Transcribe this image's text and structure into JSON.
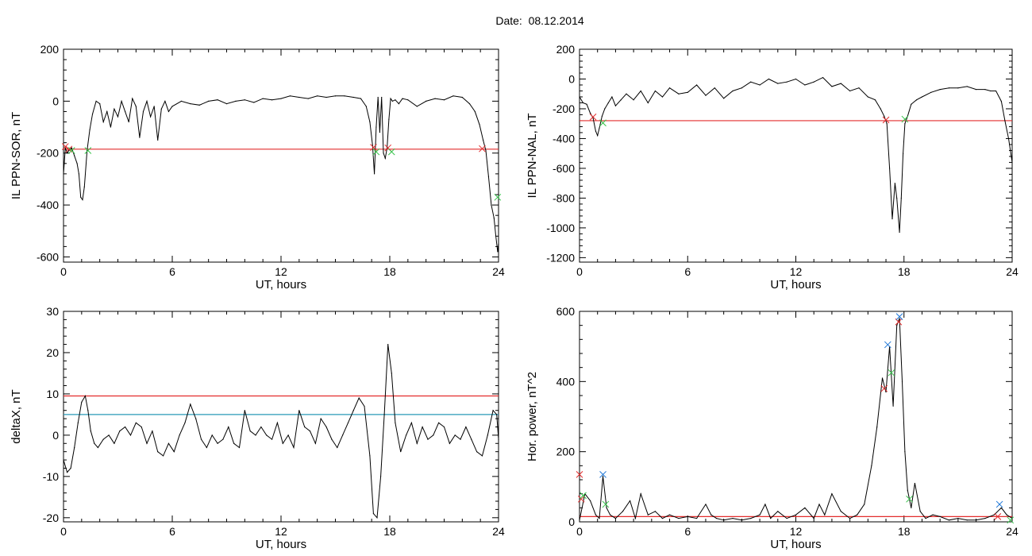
{
  "header": {
    "date_label": "Date:",
    "date_value": "08.12.2014"
  },
  "colors": {
    "trace": "#000000",
    "threshold": "#e32c2c",
    "threshold2": "#2a9ab7",
    "blue_marker": "#1f78d8",
    "green_marker": "#36c24a",
    "red_marker": "#e32c2c"
  },
  "chart_data": [
    {
      "id": "sor",
      "type": "line",
      "xlabel": "UT, hours",
      "ylabel": "IL PPN-SOR, nT",
      "xlim": [
        0,
        24
      ],
      "ylim": [
        -620,
        200
      ],
      "xticks": [
        0,
        6,
        12,
        18,
        24
      ],
      "yticks": [
        200,
        0,
        -200,
        -400,
        -600
      ],
      "threshold": -185,
      "series": [
        {
          "x": [
            0,
            0.1,
            0.2,
            0.3,
            0.45,
            0.6,
            0.75,
            0.85,
            0.95,
            1.05,
            1.15,
            1.3,
            1.45,
            1.6,
            1.8,
            2.0,
            2.2,
            2.4,
            2.6,
            2.8,
            3.0,
            3.2,
            3.4,
            3.6,
            3.8,
            4.0,
            4.2,
            4.4,
            4.6,
            4.8,
            5.0,
            5.2,
            5.4,
            5.6,
            5.8,
            6.0,
            6.5,
            7.0,
            7.5,
            8.0,
            8.5,
            9.0,
            9.5,
            10.0,
            10.5,
            11.0,
            11.5,
            12.0,
            12.5,
            13.0,
            13.5,
            14.0,
            14.5,
            15.0,
            15.5,
            16.0,
            16.4,
            16.7,
            16.9,
            17.05,
            17.15,
            17.25,
            17.35,
            17.45,
            17.55,
            17.65,
            17.75,
            17.85,
            17.95,
            18.05,
            18.15,
            18.3,
            18.5,
            18.7,
            19.0,
            19.5,
            20.0,
            20.5,
            21.0,
            21.5,
            22.0,
            22.4,
            22.7,
            22.95,
            23.15,
            23.3,
            23.45,
            23.6,
            23.75,
            23.85,
            23.95,
            24.0
          ],
          "y": [
            -280,
            -180,
            -200,
            -190,
            -180,
            -210,
            -240,
            -280,
            -370,
            -380,
            -330,
            -190,
            -110,
            -50,
            0,
            -10,
            -80,
            -40,
            -100,
            -30,
            -60,
            0,
            -40,
            -80,
            10,
            -20,
            -140,
            -40,
            0,
            -60,
            -20,
            -150,
            -30,
            0,
            -40,
            -20,
            0,
            -10,
            -15,
            0,
            5,
            -10,
            0,
            5,
            -5,
            10,
            5,
            10,
            20,
            15,
            10,
            20,
            15,
            20,
            20,
            15,
            10,
            -20,
            -80,
            -170,
            -280,
            -100,
            15,
            -120,
            15,
            -200,
            -220,
            -180,
            -70,
            10,
            0,
            5,
            -10,
            10,
            5,
            -20,
            0,
            10,
            5,
            20,
            15,
            -10,
            -40,
            -90,
            -150,
            -190,
            -290,
            -400,
            -450,
            -520,
            -580,
            -550
          ]
        }
      ],
      "markers": [
        {
          "x": 0.1,
          "y": -175,
          "color": "red"
        },
        {
          "x": 0.3,
          "y": -185,
          "color": "red"
        },
        {
          "x": 0.45,
          "y": -190,
          "color": "green"
        },
        {
          "x": 1.35,
          "y": -190,
          "color": "green"
        },
        {
          "x": 17.1,
          "y": -178,
          "color": "red"
        },
        {
          "x": 17.25,
          "y": -195,
          "color": "green"
        },
        {
          "x": 17.9,
          "y": -180,
          "color": "red"
        },
        {
          "x": 18.1,
          "y": -195,
          "color": "green"
        },
        {
          "x": 23.1,
          "y": -183,
          "color": "red"
        },
        {
          "x": 23.95,
          "y": -370,
          "color": "green"
        }
      ]
    },
    {
      "id": "nal",
      "type": "line",
      "xlabel": "UT, hours",
      "ylabel": "IL PPN-NAL, nT",
      "xlim": [
        0,
        24
      ],
      "ylim": [
        -1230,
        200
      ],
      "xticks": [
        0,
        6,
        12,
        18,
        24
      ],
      "yticks": [
        200,
        0,
        -200,
        -400,
        -600,
        -800,
        -1000,
        -1200
      ],
      "threshold": -280,
      "series": [
        {
          "x": [
            0,
            0.2,
            0.4,
            0.6,
            0.75,
            0.9,
            1.0,
            1.1,
            1.25,
            1.4,
            1.6,
            1.8,
            2.0,
            2.3,
            2.6,
            3.0,
            3.4,
            3.8,
            4.2,
            4.6,
            5.0,
            5.5,
            6.0,
            6.5,
            7.0,
            7.5,
            8.0,
            8.5,
            9.0,
            9.5,
            10.0,
            10.5,
            11.0,
            11.5,
            12.0,
            12.5,
            13.0,
            13.5,
            14.0,
            14.5,
            15.0,
            15.5,
            16.0,
            16.4,
            16.7,
            16.9,
            17.05,
            17.2,
            17.35,
            17.5,
            17.6,
            17.75,
            17.85,
            17.95,
            18.05,
            18.2,
            18.4,
            18.7,
            19.0,
            19.5,
            20.0,
            20.5,
            21.0,
            21.5,
            22.0,
            22.5,
            22.8,
            23.1,
            23.4,
            23.6,
            23.8,
            24.0
          ],
          "y": [
            -120,
            -160,
            -170,
            -230,
            -260,
            -350,
            -380,
            -330,
            -250,
            -200,
            -160,
            -120,
            -180,
            -140,
            -100,
            -140,
            -80,
            -160,
            -80,
            -120,
            -60,
            -100,
            -90,
            -40,
            -110,
            -60,
            -130,
            -80,
            -60,
            -20,
            -40,
            0,
            -30,
            -20,
            0,
            -40,
            -20,
            10,
            -50,
            -30,
            -80,
            -60,
            -120,
            -140,
            -200,
            -250,
            -300,
            -600,
            -940,
            -700,
            -800,
            -1030,
            -800,
            -500,
            -300,
            -250,
            -170,
            -140,
            -120,
            -90,
            -70,
            -60,
            -60,
            -50,
            -70,
            -70,
            -80,
            -80,
            -150,
            -280,
            -400,
            -560
          ]
        }
      ],
      "markers": [
        {
          "x": 0.75,
          "y": -255,
          "color": "red"
        },
        {
          "x": 1.3,
          "y": -295,
          "color": "green"
        },
        {
          "x": 17.0,
          "y": -275,
          "color": "red"
        },
        {
          "x": 18.05,
          "y": -270,
          "color": "green"
        }
      ]
    },
    {
      "id": "deltax",
      "type": "line",
      "xlabel": "UT, hours",
      "ylabel": "deltaX, nT",
      "xlim": [
        0,
        24
      ],
      "ylim": [
        -21,
        30
      ],
      "xticks": [
        0,
        6,
        12,
        18,
        24
      ],
      "yticks": [
        30,
        20,
        10,
        0,
        -10,
        -20
      ],
      "threshold": 9.5,
      "threshold2": 5,
      "series": [
        {
          "x": [
            0,
            0.2,
            0.4,
            0.6,
            0.8,
            1.0,
            1.2,
            1.35,
            1.5,
            1.7,
            1.9,
            2.2,
            2.5,
            2.8,
            3.1,
            3.4,
            3.7,
            4.0,
            4.3,
            4.6,
            4.9,
            5.2,
            5.5,
            5.8,
            6.1,
            6.4,
            6.7,
            7.0,
            7.3,
            7.6,
            7.9,
            8.2,
            8.5,
            8.8,
            9.1,
            9.4,
            9.7,
            10.0,
            10.3,
            10.6,
            10.9,
            11.2,
            11.5,
            11.8,
            12.1,
            12.4,
            12.7,
            13.0,
            13.3,
            13.6,
            13.9,
            14.2,
            14.5,
            14.8,
            15.1,
            15.4,
            15.7,
            16.0,
            16.3,
            16.6,
            16.9,
            17.1,
            17.3,
            17.5,
            17.7,
            17.9,
            18.1,
            18.3,
            18.6,
            18.9,
            19.2,
            19.5,
            19.8,
            20.1,
            20.4,
            20.7,
            21.0,
            21.3,
            21.6,
            21.9,
            22.2,
            22.5,
            22.8,
            23.1,
            23.4,
            23.7,
            23.9,
            24.0
          ],
          "y": [
            -6,
            -9,
            -8,
            -3,
            3,
            8,
            9.5,
            6,
            1,
            -2,
            -3,
            -1,
            0,
            -2,
            1,
            2,
            0,
            3,
            2,
            -2,
            1,
            -4,
            -5,
            -2,
            -4,
            0,
            3,
            7.5,
            4,
            -1,
            -3,
            0,
            -2,
            -1,
            2,
            -2,
            -3,
            6,
            1,
            0,
            2,
            0,
            -1,
            3,
            -2,
            0,
            -3,
            6,
            2,
            1,
            -2,
            4,
            2,
            -1,
            -3,
            0,
            3,
            6,
            9,
            7,
            -5,
            -19,
            -20,
            -10,
            5,
            22,
            15,
            3,
            -4,
            0,
            3,
            -2,
            2,
            -1,
            0,
            3,
            2,
            -2,
            0,
            -1,
            2,
            -1,
            -4,
            -5,
            0,
            6,
            5,
            -1
          ]
        }
      ],
      "markers": []
    },
    {
      "id": "power",
      "type": "line",
      "xlabel": "UT, hours",
      "ylabel": "Hor. power, nT^2",
      "xlim": [
        0,
        24
      ],
      "ylim": [
        0,
        600
      ],
      "xticks": [
        0,
        6,
        12,
        18,
        24
      ],
      "yticks": [
        600,
        400,
        200,
        0
      ],
      "threshold": 15,
      "series": [
        {
          "x": [
            0,
            0.3,
            0.6,
            0.9,
            1.1,
            1.3,
            1.5,
            1.7,
            2.0,
            2.4,
            2.8,
            3.1,
            3.4,
            3.8,
            4.2,
            4.6,
            5.0,
            5.5,
            6.0,
            6.5,
            7.0,
            7.3,
            7.6,
            8.0,
            8.5,
            9.0,
            9.5,
            10.0,
            10.3,
            10.6,
            11.0,
            11.5,
            12.0,
            12.5,
            13.0,
            13.3,
            13.6,
            14.0,
            14.5,
            15.0,
            15.4,
            15.8,
            16.2,
            16.5,
            16.8,
            17.0,
            17.2,
            17.4,
            17.6,
            17.75,
            17.9,
            18.05,
            18.2,
            18.4,
            18.6,
            18.9,
            19.2,
            19.6,
            20.0,
            20.5,
            21.0,
            21.5,
            22.0,
            22.5,
            23.0,
            23.4,
            23.7,
            24.0
          ],
          "y": [
            5,
            80,
            60,
            20,
            10,
            130,
            40,
            20,
            10,
            30,
            60,
            10,
            80,
            20,
            30,
            10,
            20,
            10,
            15,
            10,
            50,
            20,
            10,
            5,
            10,
            5,
            10,
            20,
            50,
            10,
            30,
            10,
            20,
            40,
            10,
            50,
            20,
            80,
            30,
            10,
            20,
            50,
            160,
            270,
            410,
            370,
            500,
            330,
            560,
            580,
            400,
            200,
            90,
            40,
            110,
            30,
            10,
            20,
            15,
            5,
            10,
            5,
            5,
            10,
            20,
            40,
            20,
            10
          ]
        }
      ],
      "markers": [
        {
          "x": 0.0,
          "y": 135,
          "color": "red"
        },
        {
          "x": 0.1,
          "y": 65,
          "color": "red"
        },
        {
          "x": 0.2,
          "y": 75,
          "color": "green"
        },
        {
          "x": 1.3,
          "y": 135,
          "color": "blue"
        },
        {
          "x": 1.45,
          "y": 50,
          "color": "green"
        },
        {
          "x": 16.9,
          "y": 380,
          "color": "red"
        },
        {
          "x": 17.1,
          "y": 505,
          "color": "blue"
        },
        {
          "x": 17.3,
          "y": 425,
          "color": "green"
        },
        {
          "x": 17.7,
          "y": 570,
          "color": "red"
        },
        {
          "x": 17.75,
          "y": 585,
          "color": "blue"
        },
        {
          "x": 18.3,
          "y": 65,
          "color": "green"
        },
        {
          "x": 23.3,
          "y": 50,
          "color": "blue"
        },
        {
          "x": 23.2,
          "y": 15,
          "color": "red"
        },
        {
          "x": 23.9,
          "y": 5,
          "color": "green"
        }
      ]
    }
  ]
}
